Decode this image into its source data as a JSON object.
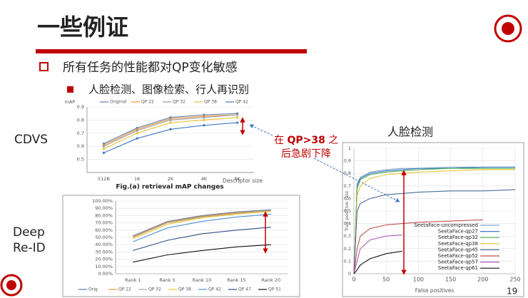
{
  "header": {
    "title": "一些例证",
    "page_number": "19"
  },
  "bullets": [
    {
      "text": "所有任务的性能都对QP变化敏感"
    },
    {
      "text": "人脸检测、图像检索、行人再识别"
    }
  ],
  "side_labels": {
    "cdvs": "CDVS",
    "reid": [
      "Deep",
      "Re-ID"
    ]
  },
  "annotation": {
    "prefix": "在 ",
    "emphasis": "QP>38",
    "suffix": " 之",
    "line2": "后急剧下降"
  },
  "chart_data": [
    {
      "type": "line",
      "title": "Fig.(a) retrieval mAP changes",
      "y_label": "mAP",
      "x_label": "Descriptor size",
      "categories": [
        "512B",
        "1K",
        "2K",
        "4K",
        "8K"
      ],
      "ylim": [
        0.4,
        0.9
      ],
      "yticks": [
        0.5,
        0.6,
        0.7,
        0.8,
        0.9
      ],
      "grid": true,
      "markers": true,
      "legend": "top",
      "series": [
        {
          "name": "Original",
          "color": "#5b7fa8",
          "values": [
            0.62,
            0.74,
            0.82,
            0.84,
            0.85
          ]
        },
        {
          "name": "QP 22",
          "color": "#e8903a",
          "values": [
            0.61,
            0.73,
            0.81,
            0.83,
            0.84
          ]
        },
        {
          "name": "QP 32",
          "color": "#9a9a9a",
          "values": [
            0.6,
            0.72,
            0.8,
            0.82,
            0.84
          ]
        },
        {
          "name": "QP 38",
          "color": "#e8c23a",
          "values": [
            0.58,
            0.7,
            0.78,
            0.8,
            0.82
          ]
        },
        {
          "name": "QP 42",
          "color": "#3f78c9",
          "values": [
            0.55,
            0.66,
            0.73,
            0.76,
            0.78
          ]
        }
      ]
    },
    {
      "type": "line",
      "categories": [
        "Rank 1",
        "Rank 5",
        "Rank 10",
        "Rank 15",
        "Rank 20"
      ],
      "ylim": [
        0,
        100
      ],
      "grid": true,
      "markers": false,
      "legend": "bottom",
      "yticks": [
        {
          "value": 0,
          "label": "0.00%"
        },
        {
          "value": 10,
          "label": "10.00%"
        },
        {
          "value": 20,
          "label": "20.00%"
        },
        {
          "value": 30,
          "label": "30.00%"
        },
        {
          "value": 40,
          "label": "40.00%"
        },
        {
          "value": 50,
          "label": "50.00%"
        },
        {
          "value": 60,
          "label": "60.00%"
        },
        {
          "value": 70,
          "label": "70.00%"
        },
        {
          "value": 80,
          "label": "80.00%"
        },
        {
          "value": 90,
          "label": "90.00%"
        },
        {
          "value": 100,
          "label": "100.00%"
        }
      ],
      "series": [
        {
          "name": "Orig",
          "color": "#5b7fa8",
          "values": [
            52,
            72,
            80,
            85,
            88
          ]
        },
        {
          "name": "QP 22",
          "color": "#e8903a",
          "values": [
            51,
            71,
            79,
            84,
            87
          ]
        },
        {
          "name": "QP 32",
          "color": "#a5a5a5",
          "values": [
            50,
            70,
            78,
            83,
            87
          ]
        },
        {
          "name": "QP 38",
          "color": "#f0c419",
          "values": [
            48,
            68,
            77,
            82,
            86
          ]
        },
        {
          "name": "QP 42",
          "color": "#4f8fd6",
          "values": [
            44,
            63,
            72,
            78,
            82
          ]
        },
        {
          "name": "QP 47",
          "color": "#2f4f7f",
          "values": [
            32,
            46,
            55,
            60,
            64
          ]
        },
        {
          "name": "QP 51",
          "color": "#111111",
          "values": [
            16,
            26,
            32,
            37,
            40
          ]
        }
      ]
    },
    {
      "type": "line",
      "title": "人脸检测",
      "x_label": "False positives",
      "y_label": "True positive rate",
      "x": [
        0,
        5,
        10,
        25,
        50,
        75,
        100,
        150,
        200,
        250
      ],
      "xlim": [
        0,
        250
      ],
      "xticks": [
        0,
        50,
        100,
        150,
        200,
        250
      ],
      "ylim": [
        0,
        1
      ],
      "yticks": [
        0,
        0.1,
        0.2,
        0.3,
        0.4,
        0.5,
        0.6,
        0.7,
        0.8,
        0.9,
        1
      ],
      "grid": true,
      "markers": false,
      "legend": "lower right",
      "series": [
        {
          "name": "SeetaFace-uncompressed",
          "color": "#7fa7c9",
          "values": [
            0,
            0.72,
            0.77,
            0.81,
            0.83,
            0.84,
            0.84,
            0.85,
            0.85,
            0.85
          ]
        },
        {
          "name": "SeetaFace-qp27",
          "color": "#3f78c9",
          "values": [
            0,
            0.7,
            0.76,
            0.8,
            0.82,
            0.83,
            0.84,
            0.84,
            0.85,
            0.85
          ]
        },
        {
          "name": "SeetaFace-qp32",
          "color": "#4caf50",
          "values": [
            0,
            0.68,
            0.75,
            0.79,
            0.81,
            0.82,
            0.83,
            0.84,
            0.84,
            0.84
          ]
        },
        {
          "name": "SeetaFace-qp38",
          "color": "#e8c23a",
          "values": [
            0,
            0.62,
            0.7,
            0.76,
            0.79,
            0.8,
            0.81,
            0.82,
            0.83,
            0.83
          ]
        },
        {
          "name": "SeetaFace-qp45",
          "color": "#4a6f9a",
          "values": [
            0,
            0.5,
            0.56,
            0.6,
            0.63,
            0.64,
            0.65,
            0.66,
            0.66,
            0.67
          ]
        },
        {
          "name": "SeetaFace-qp52",
          "color": "#c0504d",
          "values": [
            0,
            0.2,
            0.3,
            0.36,
            0.39,
            0.4,
            0.41,
            0.42,
            0.43,
            null
          ]
        },
        {
          "name": "SeetaFace-qp57",
          "color": "#b05cc0",
          "values": [
            0,
            0.1,
            0.2,
            0.27,
            0.3,
            0.31,
            null,
            null,
            null,
            null
          ]
        },
        {
          "name": "SeetaFace-qp61",
          "color": "#111111",
          "values": [
            0,
            0.03,
            0.07,
            0.12,
            0.16,
            0.18,
            null,
            null,
            null,
            null
          ]
        }
      ]
    }
  ]
}
